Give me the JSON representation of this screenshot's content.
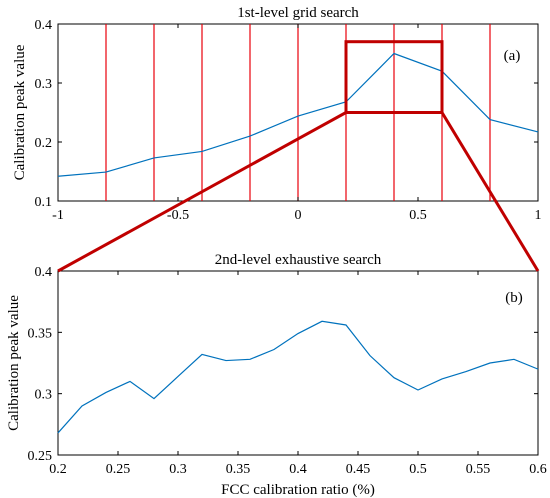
{
  "figure": {
    "connector_color": "#c00000",
    "chart_data": [
      {
        "type": "line",
        "title": "1st-level grid search",
        "panel_label": "(a)",
        "ylabel": "Calibration peak value",
        "xlabel": "",
        "xlim": [
          -1,
          1
        ],
        "ylim": [
          0.1,
          0.4
        ],
        "xticks": [
          "-1",
          "-0.5",
          "0",
          "0.5",
          "1"
        ],
        "yticks": [
          "0.1",
          "0.2",
          "0.3",
          "0.4"
        ],
        "grid_lines_x": [
          -0.8,
          -0.6,
          -0.4,
          -0.2,
          0,
          0.2,
          0.4,
          0.6,
          0.8
        ],
        "grid_line_color": "#e8000b",
        "highlight_box": {
          "x": [
            0.2,
            0.6
          ],
          "y": [
            0.25,
            0.37
          ],
          "color": "#c00000"
        },
        "series": [
          {
            "color": "#0072bd",
            "x": [
              -1,
              -0.8,
              -0.6,
              -0.4,
              -0.2,
              0,
              0.2,
              0.4,
              0.6,
              0.8,
              1
            ],
            "y": [
              0.142,
              0.149,
              0.173,
              0.184,
              0.21,
              0.244,
              0.268,
              0.35,
              0.32,
              0.238,
              0.217
            ]
          }
        ]
      },
      {
        "type": "line",
        "title": "2nd-level exhaustive search",
        "panel_label": "(b)",
        "ylabel": "Calibration peak value",
        "xlabel": "FCC calibration ratio (%)",
        "xlim": [
          0.2,
          0.6
        ],
        "ylim": [
          0.25,
          0.4
        ],
        "xticks": [
          "0.2",
          "0.25",
          "0.3",
          "0.35",
          "0.4",
          "0.45",
          "0.5",
          "0.55",
          "0.6"
        ],
        "yticks": [
          "0.25",
          "0.3",
          "0.35",
          "0.4"
        ],
        "series": [
          {
            "color": "#0072bd",
            "x": [
              0.2,
              0.22,
              0.24,
              0.26,
              0.28,
              0.3,
              0.32,
              0.34,
              0.36,
              0.38,
              0.4,
              0.42,
              0.44,
              0.46,
              0.48,
              0.5,
              0.52,
              0.54,
              0.56,
              0.58,
              0.6
            ],
            "y": [
              0.268,
              0.29,
              0.301,
              0.31,
              0.296,
              0.314,
              0.332,
              0.327,
              0.328,
              0.336,
              0.349,
              0.359,
              0.356,
              0.331,
              0.313,
              0.303,
              0.312,
              0.318,
              0.325,
              0.328,
              0.32
            ]
          }
        ]
      }
    ]
  }
}
